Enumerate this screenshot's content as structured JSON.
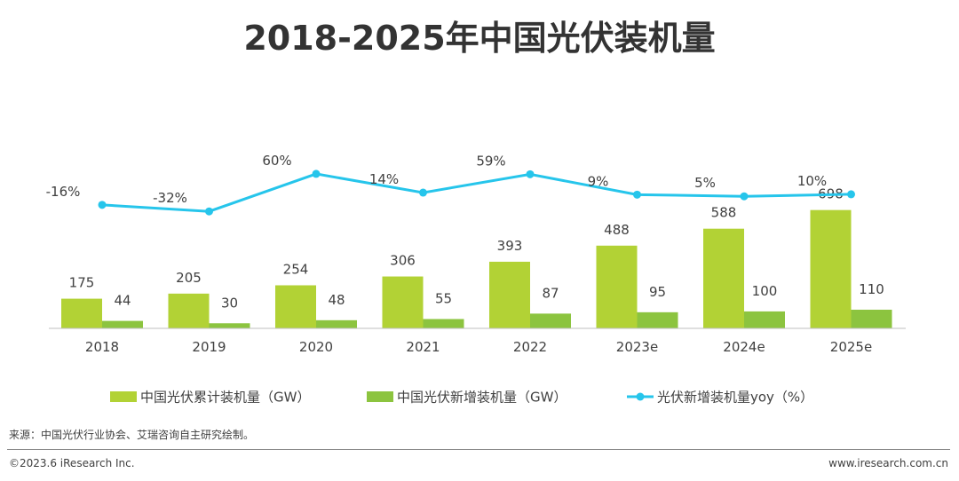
{
  "title": "2018-2025年中国光伏装机量",
  "chart_data": {
    "type": "bar",
    "categories": [
      "2018",
      "2019",
      "2020",
      "2021",
      "2022",
      "2023e",
      "2024e",
      "2025e"
    ],
    "series": [
      {
        "name": "中国光伏累计装机量（GW）",
        "type": "bar",
        "color": "#b2d235",
        "values": [
          175,
          205,
          254,
          306,
          393,
          488,
          588,
          698
        ]
      },
      {
        "name": "中国光伏新增装机量（GW）",
        "type": "bar",
        "color": "#8cc43f",
        "values": [
          44,
          30,
          48,
          55,
          87,
          95,
          100,
          110
        ]
      },
      {
        "name": "光伏新增装机量yoy（%）",
        "type": "line",
        "color": "#26c5eb",
        "values": [
          -16,
          -32,
          60,
          14,
          59,
          9,
          5,
          10
        ],
        "labels": [
          "-16%",
          "-32%",
          "60%",
          "14%",
          "59%",
          "9%",
          "5%",
          "10%"
        ]
      }
    ],
    "legend": "bottom",
    "grid": false
  },
  "footer": {
    "source": "来源：中国光伏行业协会、艾瑞咨询自主研究绘制。",
    "copyright": "©2023.6 iResearch Inc.",
    "website": "www.iresearch.com.cn"
  }
}
